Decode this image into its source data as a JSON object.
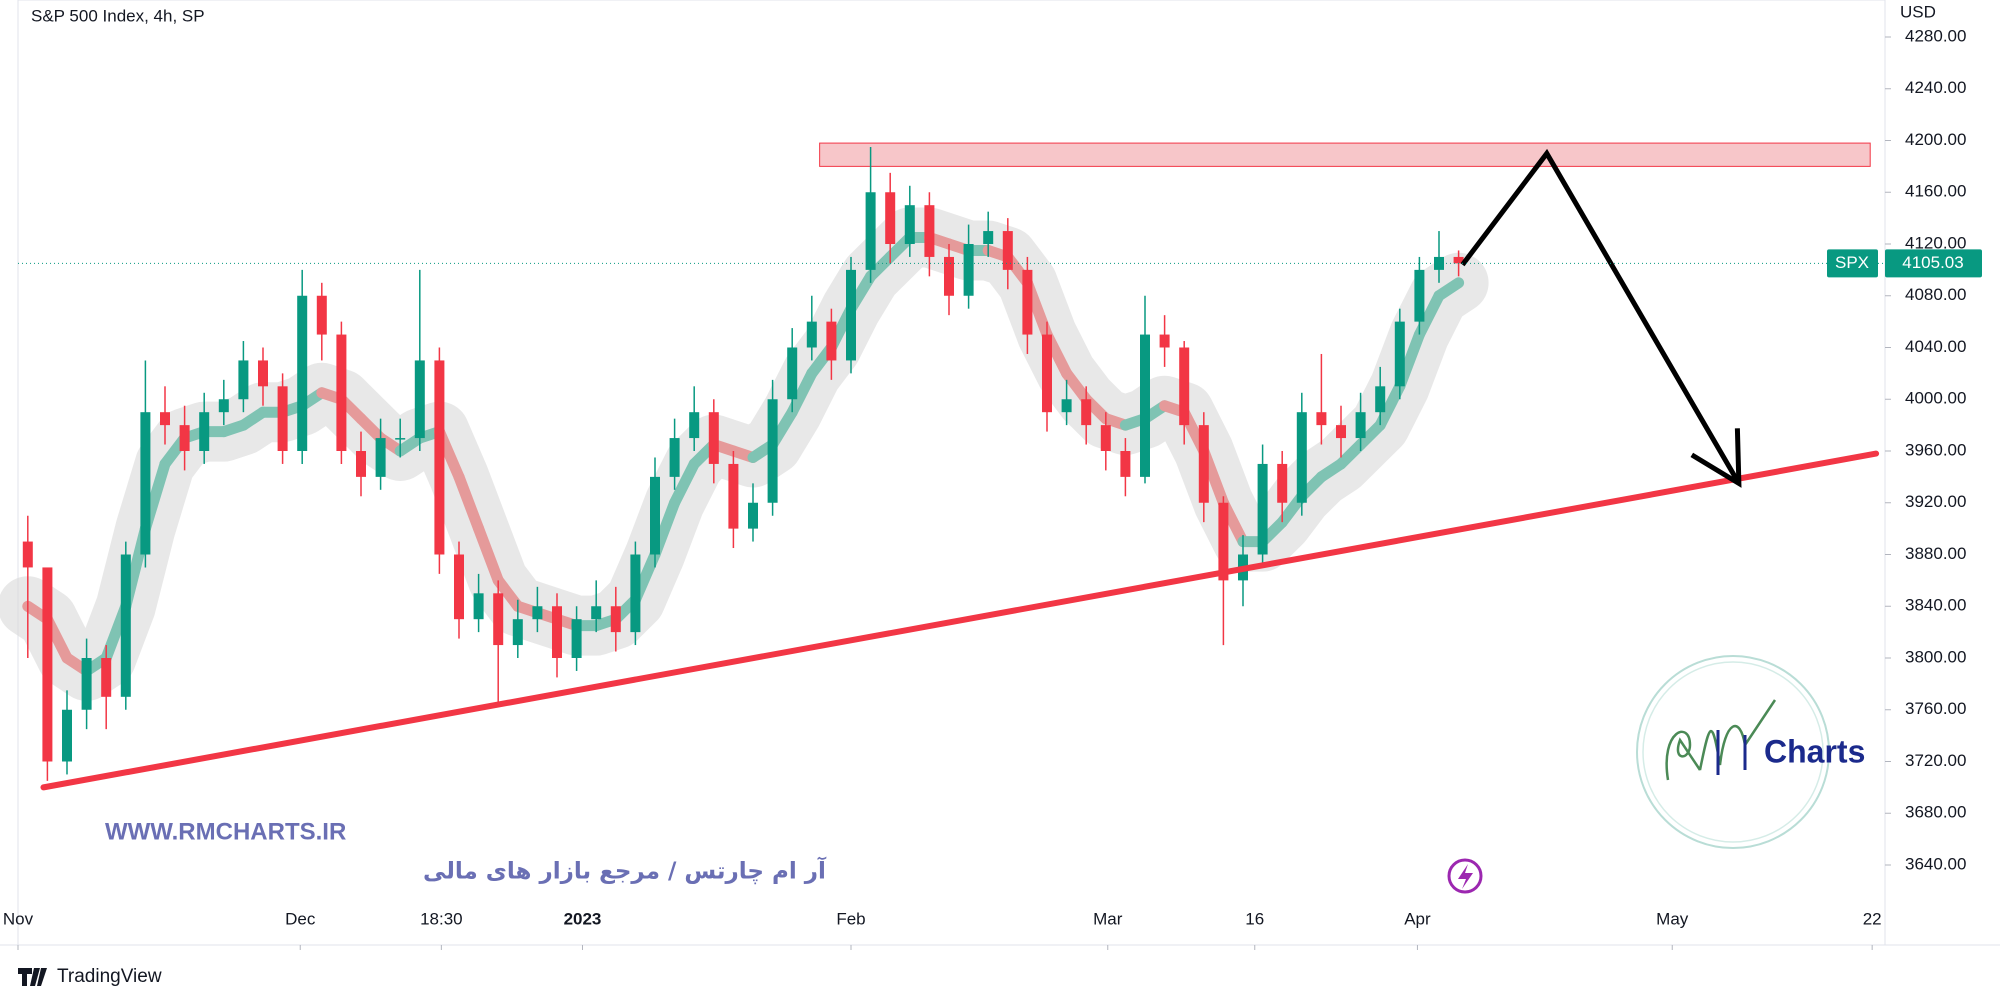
{
  "chart_data": {
    "type": "candlestick",
    "title": "S&P 500 Index, 4h, SP",
    "currency": "USD",
    "symbol": "SPX",
    "up_color": "#089981",
    "down_color": "#f23645",
    "ribbon_up_color": "#7fc3b3",
    "ribbon_down_color": "#e59a9a",
    "candles": {
      "open": [
        3890,
        3870,
        3720,
        3760,
        3800,
        3770,
        3880,
        3990,
        3980,
        3960,
        3990,
        4000,
        4030,
        4010,
        3960,
        4080,
        4050,
        3960,
        3940,
        3970,
        3970,
        4030,
        3880,
        3830,
        3850,
        3810,
        3830,
        3840,
        3800,
        3830,
        3840,
        3820,
        3880,
        3940,
        3970,
        3990,
        3950,
        3900,
        3920,
        4000,
        4040,
        4060,
        4030,
        4100,
        4160,
        4120,
        4150,
        4110,
        4080,
        4120,
        4130,
        4100,
        4050,
        3990,
        4000,
        3980,
        3960,
        3940,
        4050,
        4040,
        3980,
        3920,
        3860,
        3880,
        3950,
        3920,
        3990,
        3980,
        3970,
        3990,
        4010,
        4060,
        4100,
        4110
      ],
      "high": [
        3910,
        3870,
        3775,
        3815,
        3810,
        3890,
        4030,
        4010,
        3995,
        4005,
        4015,
        4045,
        4040,
        4020,
        4100,
        4090,
        4060,
        3975,
        3985,
        3985,
        4100,
        4040,
        3890,
        3865,
        3860,
        3845,
        3855,
        3850,
        3840,
        3860,
        3855,
        3890,
        3955,
        3985,
        4010,
        4000,
        3960,
        3935,
        4015,
        4055,
        4080,
        4070,
        4110,
        4195,
        4175,
        4165,
        4160,
        4120,
        4135,
        4145,
        4140,
        4110,
        4060,
        4015,
        4010,
        3990,
        3970,
        4080,
        4065,
        4045,
        3990,
        3925,
        3895,
        3965,
        3960,
        4005,
        4035,
        3995,
        4005,
        4025,
        4070,
        4110,
        4130,
        4115
      ],
      "low": [
        3800,
        3705,
        3710,
        3745,
        3745,
        3760,
        3870,
        3965,
        3945,
        3950,
        3980,
        3990,
        3995,
        3950,
        3950,
        4030,
        3950,
        3925,
        3930,
        3955,
        3960,
        3865,
        3815,
        3820,
        3765,
        3800,
        3820,
        3785,
        3790,
        3820,
        3805,
        3810,
        3870,
        3930,
        3960,
        3935,
        3885,
        3890,
        3910,
        3990,
        4030,
        4015,
        4020,
        4090,
        4105,
        4110,
        4095,
        4065,
        4070,
        4110,
        4085,
        4035,
        3975,
        3980,
        3965,
        3945,
        3925,
        3935,
        4025,
        3965,
        3905,
        3810,
        3840,
        3870,
        3905,
        3910,
        3965,
        3955,
        3960,
        3980,
        4000,
        4050,
        4090,
        4095
      ],
      "close": [
        3870,
        3720,
        3760,
        3800,
        3770,
        3880,
        3990,
        3980,
        3960,
        3990,
        4000,
        4030,
        4010,
        3960,
        4080,
        4050,
        3960,
        3940,
        3970,
        3970,
        4030,
        3880,
        3830,
        3850,
        3810,
        3830,
        3840,
        3800,
        3830,
        3840,
        3820,
        3880,
        3940,
        3970,
        3990,
        3950,
        3900,
        3920,
        4000,
        4040,
        4060,
        4030,
        4100,
        4160,
        4120,
        4150,
        4110,
        4080,
        4120,
        4130,
        4100,
        4050,
        3990,
        4000,
        3980,
        3960,
        3940,
        4050,
        4040,
        3980,
        3920,
        3860,
        3880,
        3950,
        3920,
        3990,
        3980,
        3970,
        3990,
        4010,
        4060,
        4100,
        4110,
        4105.03
      ]
    },
    "ma": [
      3840,
      3830,
      3800,
      3790,
      3800,
      3840,
      3900,
      3950,
      3970,
      3975,
      3975,
      3980,
      3990,
      3990,
      3995,
      4005,
      4000,
      3985,
      3970,
      3960,
      3970,
      3975,
      3940,
      3900,
      3860,
      3840,
      3835,
      3830,
      3825,
      3825,
      3830,
      3845,
      3880,
      3920,
      3950,
      3965,
      3960,
      3955,
      3965,
      3990,
      4020,
      4040,
      4070,
      4095,
      4110,
      4125,
      4125,
      4120,
      4115,
      4115,
      4110,
      4090,
      4050,
      4020,
      4000,
      3985,
      3980,
      3985,
      3995,
      3990,
      3960,
      3920,
      3890,
      3890,
      3905,
      3925,
      3940,
      3950,
      3965,
      3980,
      4010,
      4050,
      4080,
      4090
    ],
    "xlim": [
      0,
      95
    ],
    "xticks": [
      {
        "value": 0,
        "label": "Nov"
      },
      {
        "value": 14.4,
        "label": "Dec"
      },
      {
        "value": 21.6,
        "label": "18:30"
      },
      {
        "value": 28.8,
        "label": "2023"
      },
      {
        "value": 42.5,
        "label": "Feb"
      },
      {
        "value": 55.6,
        "label": "Mar"
      },
      {
        "value": 63.1,
        "label": "16"
      },
      {
        "value": 71.4,
        "label": "Apr"
      },
      {
        "value": 84.4,
        "label": "May"
      },
      {
        "value": 94.6,
        "label": "22"
      }
    ],
    "ylim": [
      3620,
      4300
    ],
    "yticks": [
      {
        "value": 3640,
        "label": "3640.00"
      },
      {
        "value": 3680,
        "label": "3680.00"
      },
      {
        "value": 3720,
        "label": "3720.00"
      },
      {
        "value": 3760,
        "label": "3760.00"
      },
      {
        "value": 3800,
        "label": "3800.00"
      },
      {
        "value": 3840,
        "label": "3840.00"
      },
      {
        "value": 3880,
        "label": "3880.00"
      },
      {
        "value": 3920,
        "label": "3920.00"
      },
      {
        "value": 3960,
        "label": "3960.00"
      },
      {
        "value": 4000,
        "label": "4000.00"
      },
      {
        "value": 4040,
        "label": "4040.00"
      },
      {
        "value": 4080,
        "label": "4080.00"
      },
      {
        "value": 4120,
        "label": "4120.00"
      },
      {
        "value": 4160,
        "label": "4160.00"
      },
      {
        "value": 4200,
        "label": "4200.00"
      },
      {
        "value": 4240,
        "label": "4240.00"
      },
      {
        "value": 4280,
        "label": "4280.00"
      }
    ],
    "resistance_zone": {
      "x": [
        40.9,
        94.5
      ],
      "y": [
        4180,
        4198
      ],
      "color": "#f7c6c9"
    },
    "trendline": {
      "x": [
        1.3,
        94.8
      ],
      "y": [
        3700,
        3958
      ],
      "color": "#f23645"
    },
    "projection": {
      "x": [
        73.7,
        78.0,
        87.8
      ],
      "y": [
        4104,
        4190,
        3935
      ],
      "color": "#000000"
    }
  },
  "watermark": {
    "url": "WWW.RMCHARTS.IR",
    "tagline": "آر ام چارتس / مرجع بازار های مالی",
    "logo_text": "Charts"
  },
  "footer": {
    "brand": "TradingView"
  }
}
